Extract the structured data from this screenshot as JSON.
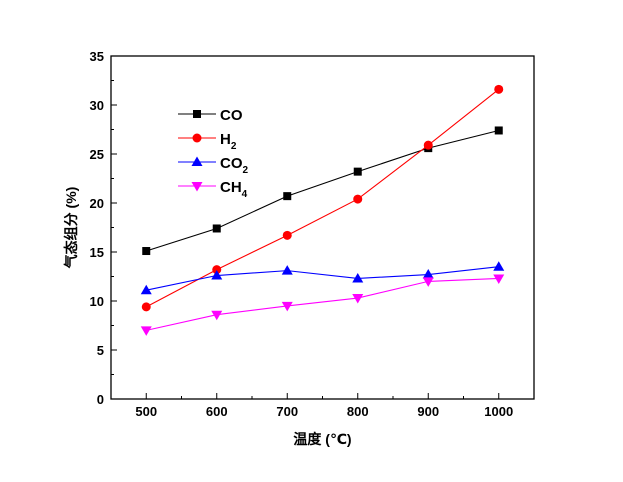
{
  "chart_data": {
    "type": "line",
    "title": "",
    "xlabel": "温度 (℃)",
    "ylabel": "气态组分 (%)",
    "xlim": [
      450,
      1050
    ],
    "ylim": [
      0,
      35
    ],
    "x": [
      500,
      600,
      700,
      800,
      900,
      1000
    ],
    "xticks": [
      500,
      600,
      700,
      800,
      900,
      1000
    ],
    "yticks": [
      0,
      5,
      10,
      15,
      20,
      25,
      30,
      35
    ],
    "grid": false,
    "legend_placement": "top-left",
    "series": [
      {
        "name": "CO",
        "label_main": "CO",
        "label_sub": "",
        "color": "#000000",
        "marker": "square",
        "values": [
          15.1,
          17.4,
          20.7,
          23.2,
          25.6,
          27.4
        ]
      },
      {
        "name": "H2",
        "label_main": "H",
        "label_sub": "2",
        "color": "#ff0000",
        "marker": "circle",
        "values": [
          9.4,
          13.2,
          16.7,
          20.4,
          25.9,
          31.6
        ]
      },
      {
        "name": "CO2",
        "label_main": "CO",
        "label_sub": "2",
        "color": "#0000ff",
        "marker": "triangle-up",
        "values": [
          11.1,
          12.6,
          13.1,
          12.3,
          12.7,
          13.5
        ]
      },
      {
        "name": "CH4",
        "label_main": "CH",
        "label_sub": "4",
        "color": "#ff00ff",
        "marker": "triangle-down",
        "values": [
          7.0,
          8.6,
          9.5,
          10.3,
          12.0,
          12.3
        ]
      }
    ]
  }
}
